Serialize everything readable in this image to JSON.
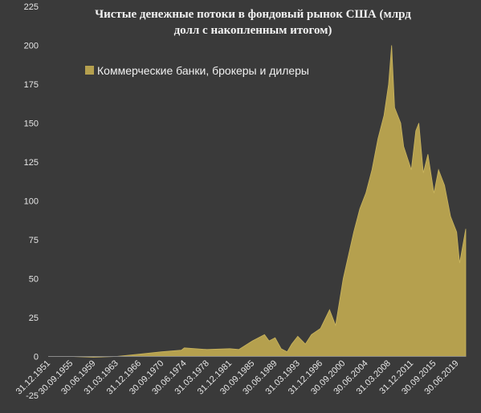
{
  "chart_data": {
    "type": "area",
    "title_lines": [
      "Чистые денежные потоки в фондовый рынок США (млрд",
      "долл с накопленным итогом)"
    ],
    "xlabel": "",
    "ylabel": "",
    "ylim": [
      -25,
      225
    ],
    "yticks": [
      -25,
      0,
      25,
      50,
      75,
      100,
      125,
      150,
      175,
      200,
      225
    ],
    "grid": false,
    "legend_position": "top-left",
    "series": [
      {
        "name": "Коммерческие банки, брокеры и дилеры",
        "color": "#b5a04e",
        "points": [
          [
            "1951-12-31",
            0
          ],
          [
            "1955-09-30",
            0
          ],
          [
            "1959-06-30",
            -0.5
          ],
          [
            "1963-03-31",
            0
          ],
          [
            "1966-12-31",
            1.5
          ],
          [
            "1970-09-30",
            3
          ],
          [
            "1973-12-31",
            4
          ],
          [
            "1974-06-30",
            5.5
          ],
          [
            "1978-03-31",
            4.5
          ],
          [
            "1981-12-31",
            5
          ],
          [
            "1983-06-30",
            4.5
          ],
          [
            "1985-09-30",
            10
          ],
          [
            "1987-09-30",
            14
          ],
          [
            "1988-06-30",
            10
          ],
          [
            "1989-06-30",
            12
          ],
          [
            "1990-06-30",
            5
          ],
          [
            "1991-06-30",
            3
          ],
          [
            "1992-03-31",
            8
          ],
          [
            "1993-03-31",
            13
          ],
          [
            "1994-06-30",
            8
          ],
          [
            "1995-06-30",
            14
          ],
          [
            "1996-12-31",
            18
          ],
          [
            "1998-06-30",
            30
          ],
          [
            "1999-06-30",
            20
          ],
          [
            "2000-09-30",
            50
          ],
          [
            "2002-06-30",
            80
          ],
          [
            "2003-06-30",
            95
          ],
          [
            "2004-06-30",
            105
          ],
          [
            "2005-06-30",
            120
          ],
          [
            "2006-06-30",
            140
          ],
          [
            "2007-06-30",
            155
          ],
          [
            "2008-03-31",
            175
          ],
          [
            "2008-09-30",
            200
          ],
          [
            "2009-03-31",
            160
          ],
          [
            "2010-03-31",
            150
          ],
          [
            "2010-09-30",
            135
          ],
          [
            "2011-12-31",
            120
          ],
          [
            "2012-09-30",
            145
          ],
          [
            "2013-03-31",
            150
          ],
          [
            "2013-12-31",
            118
          ],
          [
            "2014-09-30",
            130
          ],
          [
            "2015-09-30",
            105
          ],
          [
            "2016-06-30",
            120
          ],
          [
            "2017-06-30",
            110
          ],
          [
            "2018-06-30",
            90
          ],
          [
            "2019-06-30",
            80
          ],
          [
            "2019-12-31",
            60
          ],
          [
            "2020-12-31",
            82
          ]
        ]
      }
    ],
    "x_tick_labels": [
      "31.12.1951",
      "30.09.1955",
      "30.06.1959",
      "31.03.1963",
      "31.12.1966",
      "30.09.1970",
      "30.06.1974",
      "31.03.1978",
      "31.12.1981",
      "30.09.1985",
      "30.06.1989",
      "31.03.1993",
      "31.12.1996",
      "30.09.2000",
      "30.06.2004",
      "31.03.2008",
      "31.12.2011",
      "30.09.2015",
      "30.06.2019"
    ]
  }
}
